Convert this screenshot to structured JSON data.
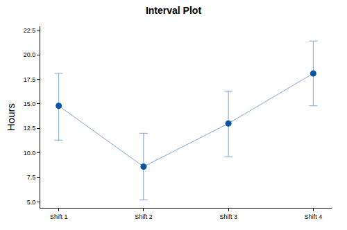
{
  "chart_data": {
    "type": "interval",
    "title": "Interval Plot",
    "y_label": "Hours",
    "categories": [
      "Shift 1",
      "Shift 2",
      "Shift 3",
      "Shift 4"
    ],
    "values": [
      14.8,
      8.6,
      13.0,
      18.1
    ],
    "ci_lower": [
      11.3,
      5.2,
      9.6,
      14.8
    ],
    "ci_upper": [
      18.1,
      12.0,
      16.3,
      21.4
    ],
    "color": "#0b56a4",
    "marker": "circle",
    "line_style": "solid",
    "ylim": [
      4.4,
      22.9
    ],
    "yticks": [
      {
        "value": 5,
        "label": "5.0"
      },
      7.5,
      {
        "value": 10,
        "label": "10.0"
      },
      12.5,
      {
        "value": 15,
        "label": "15.0"
      },
      17.5,
      {
        "value": 20,
        "label": "20.0"
      },
      22.5
    ],
    "grid": false
  }
}
